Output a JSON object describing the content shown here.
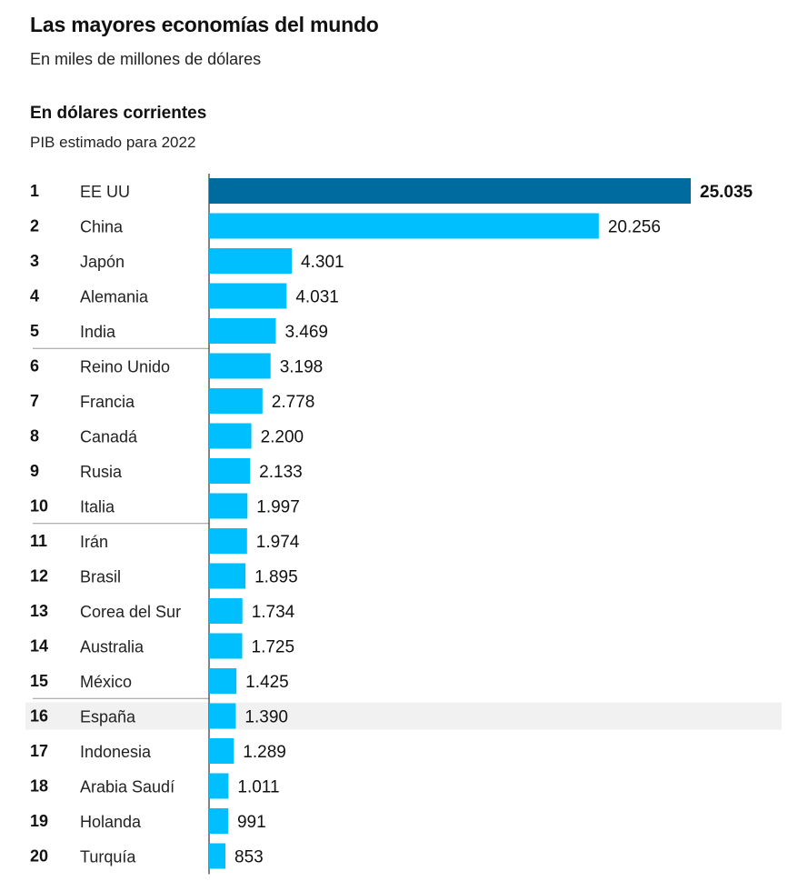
{
  "title": "Las mayores economías del mundo",
  "subtitle": "En miles de millones de dólares",
  "section_title": "En dólares corrientes",
  "section_subtitle": "PIB estimado para 2022",
  "colors": {
    "top_bar": "#006b9f",
    "bar": "#00bfff",
    "highlight_row": "#f1f1f1",
    "axis": "#333333",
    "divider": "#999999"
  },
  "chart_data": {
    "type": "bar",
    "orientation": "horizontal",
    "title": "Las mayores economías del mundo",
    "subtitle": "En miles de millones de dólares",
    "categories": [
      "EE UU",
      "China",
      "Japón",
      "Alemania",
      "India",
      "Reino Unido",
      "Francia",
      "Canadá",
      "Rusia",
      "Italia",
      "Irán",
      "Brasil",
      "Corea del Sur",
      "Australia",
      "México",
      "España",
      "Indonesia",
      "Arabia Saudí",
      "Holanda",
      "Turquía"
    ],
    "ranks": [
      "1",
      "2",
      "3",
      "4",
      "5",
      "6",
      "7",
      "8",
      "9",
      "10",
      "11",
      "12",
      "13",
      "14",
      "15",
      "16",
      "17",
      "18",
      "19",
      "20"
    ],
    "values": [
      25035,
      20256,
      4301,
      4031,
      3469,
      3198,
      2778,
      2200,
      2133,
      1997,
      1974,
      1895,
      1734,
      1725,
      1425,
      1390,
      1289,
      1011,
      991,
      853
    ],
    "value_labels": [
      "25.035",
      "20.256",
      "4.301",
      "4.031",
      "3.469",
      "3.198",
      "2.778",
      "2.200",
      "2.133",
      "1.997",
      "1.974",
      "1.895",
      "1.734",
      "1.725",
      "1.425",
      "1.390",
      "1.289",
      "1.011",
      "991",
      "853"
    ],
    "highlighted": "España",
    "emphasized": "EE UU",
    "group_dividers_after_rank": [
      5,
      10,
      15
    ],
    "xlim": [
      0,
      25035
    ],
    "xlabel": "",
    "ylabel": "",
    "grid": false,
    "legend": "none"
  }
}
